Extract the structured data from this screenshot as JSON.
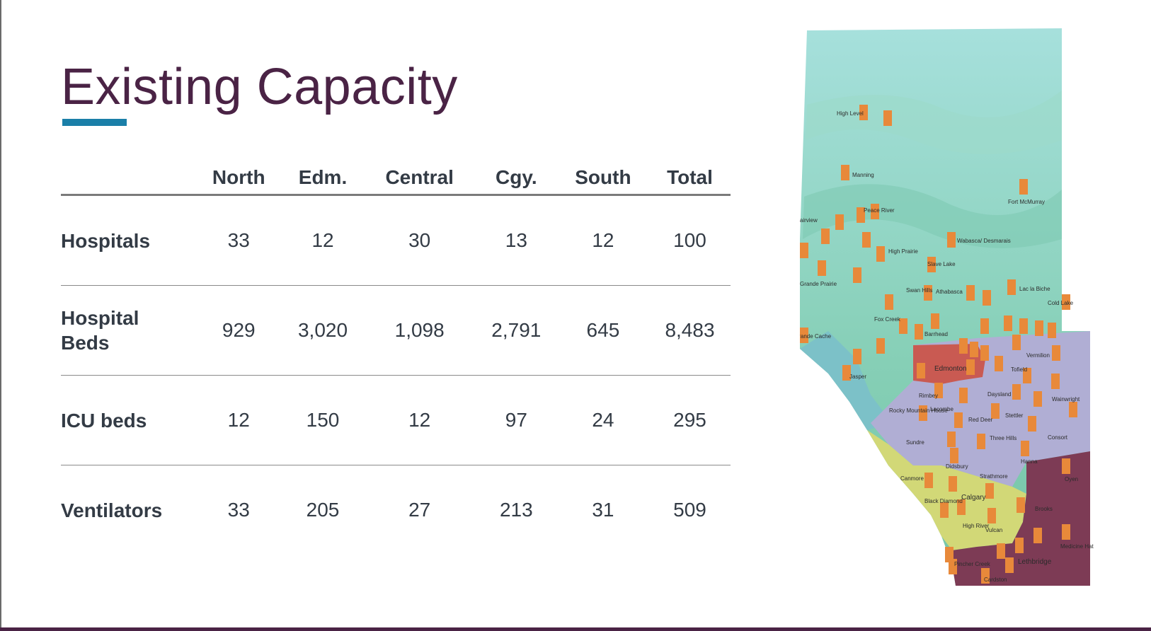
{
  "title": "Existing Capacity",
  "table": {
    "columns": [
      "North",
      "Edm.",
      "Central",
      "Cgy.",
      "South",
      "Total"
    ],
    "rows": [
      {
        "label": "Hospitals",
        "values": [
          "33",
          "12",
          "30",
          "13",
          "12",
          "100"
        ]
      },
      {
        "label": "Hospital Beds",
        "values": [
          "929",
          "3,020",
          "1,098",
          "2,791",
          "645",
          "8,483"
        ]
      },
      {
        "label": "ICU beds",
        "values": [
          "12",
          "150",
          "12",
          "97",
          "24",
          "295"
        ]
      },
      {
        "label": "Ventilators",
        "values": [
          "33",
          "205",
          "27",
          "213",
          "31",
          "509"
        ]
      }
    ]
  },
  "map": {
    "zone_colors": {
      "north": "#8ed4c8",
      "edmonton": "#c0504d",
      "central": "#a9a6cf",
      "calgary": "#cfd66e",
      "south": "#7d3b55",
      "hospital_icon": "#e8893a"
    },
    "towns": [
      "High Level",
      "Manning",
      "Fort McMurray",
      "Peace River",
      "Fairview",
      "High Prairie",
      "Wabasca/ Desmarais",
      "Slave Lake",
      "Grande Prairie",
      "Swan Hills",
      "Athabasca",
      "Lac la Biche",
      "Cold Lake",
      "Fox Creek",
      "Barrhead",
      "Grande Cache",
      "Vermilion",
      "Edmonton",
      "Tofield",
      "Jasper",
      "Rimbey",
      "Daysland",
      "Wainwright",
      "Lacombe",
      "Rocky Mountain House",
      "Red Deer",
      "Stettler",
      "Consort",
      "Sundre",
      "Three Hills",
      "Hanna",
      "Didsbury",
      "Strathmore",
      "Oyen",
      "Canmore",
      "Calgary",
      "Black Diamond",
      "Brooks",
      "High River",
      "Vulcan",
      "Medicine Hat",
      "Lethbridge",
      "Pincher Creek",
      "Cardston"
    ]
  }
}
